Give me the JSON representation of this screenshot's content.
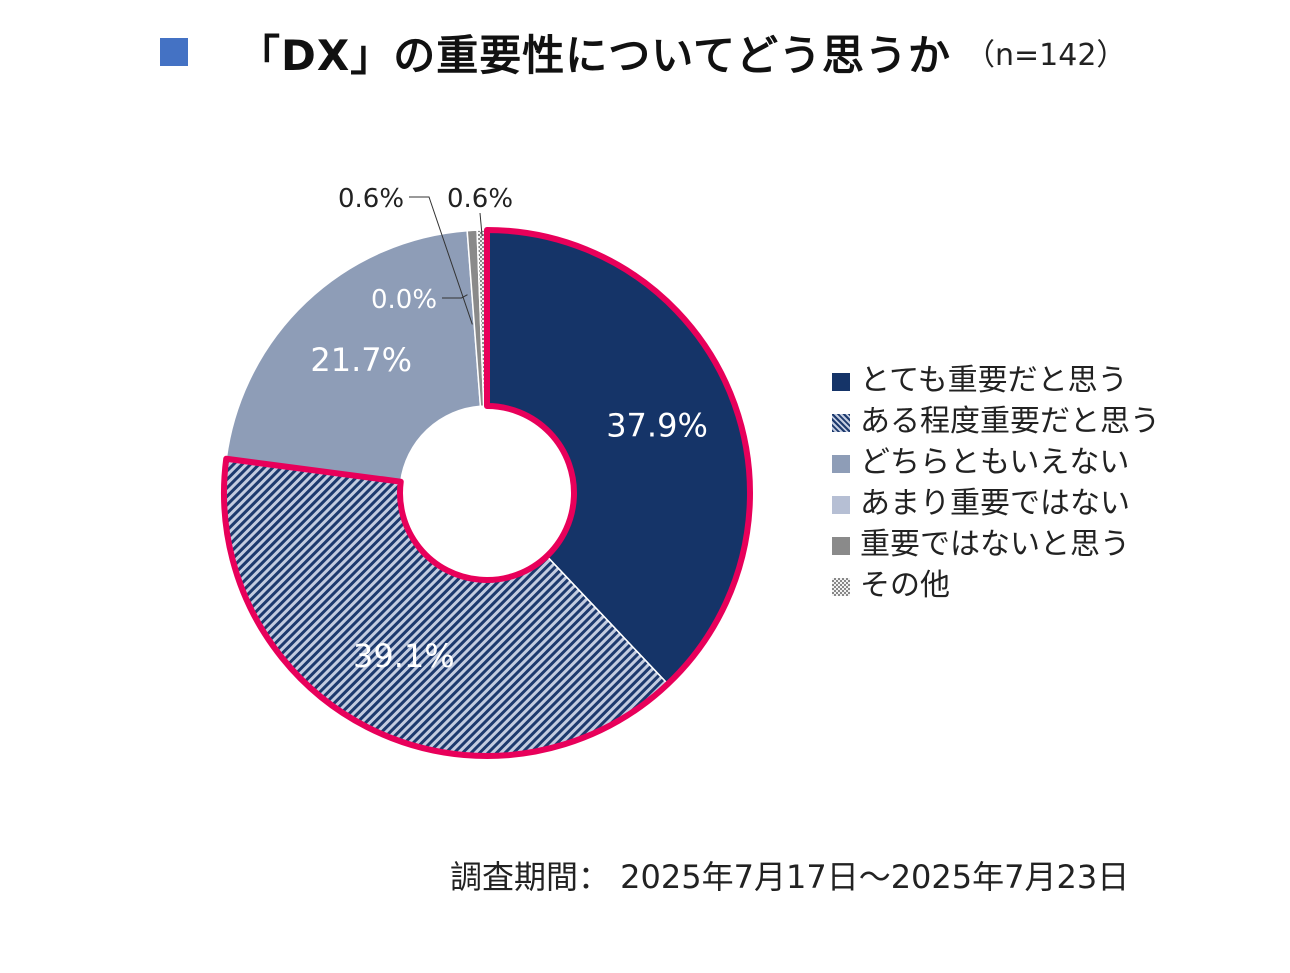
{
  "title": {
    "main": "「DX」の重要性についてどう思うか",
    "n": "（n=142）"
  },
  "colors": {
    "title_marker": "#4472c4",
    "highlight_border": "#e8005a",
    "series": [
      "#153468",
      "#8a9cc0",
      "#8e9db7",
      "#b6bfd4",
      "#8a8a8a",
      "#c8c8c8"
    ]
  },
  "chart_data": {
    "type": "pie",
    "style": "donut",
    "categories": [
      "とても重要だと思う",
      "ある程度重要だと思う",
      "どちらともいえない",
      "あまり重要ではない",
      "重要ではないと思う",
      "その他"
    ],
    "values": [
      37.9,
      39.1,
      21.7,
      0.0,
      0.6,
      0.6
    ],
    "data_labels": [
      "37.9%",
      "39.1%",
      "21.7%",
      "0.0%",
      "0.6%",
      "0.6%"
    ],
    "highlighted": [
      "とても重要だと思う",
      "ある程度重要だと思う"
    ],
    "patterns": [
      "solid",
      "diagonal-stripes",
      "solid",
      "solid",
      "solid",
      "dotted"
    ],
    "legend_position": "right"
  },
  "footer": {
    "survey_period": "調査期間： 2025年7月17日～2025年7月23日"
  }
}
